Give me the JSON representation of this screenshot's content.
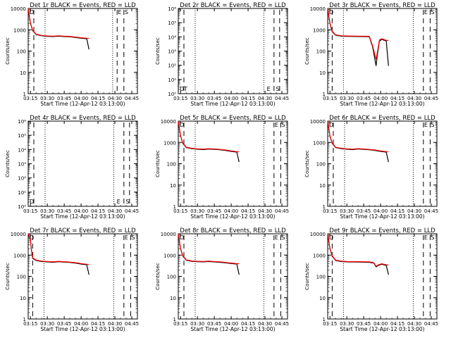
{
  "figure": {
    "xlabel": "Start Time (12-Apr-12 03:13:00)",
    "ylabel": "Counts/sec",
    "x_ticks": [
      "03:15",
      "03:30",
      "03:45",
      "04:00",
      "04:15",
      "04:30",
      "04:45"
    ],
    "colors": {
      "events": "#000000",
      "lld": "#ff0000",
      "background": "#ffffff"
    }
  },
  "chart_data": [
    {
      "type": "line",
      "title": "Det 1r BLACK = Events, RED = LLD",
      "yscale": "log",
      "ylim": [
        1,
        10000
      ],
      "y_ticks": [
        "1",
        "10",
        "100",
        "1000",
        "10000"
      ],
      "xlim": [
        "03:13",
        "04:50"
      ],
      "vlines_dashed": [
        "03:18",
        "04:32",
        "04:38"
      ],
      "vlines_dotted": [
        "03:28",
        "04:28"
      ],
      "markers": [
        {
          "label": "D",
          "x": "03:13"
        },
        {
          "label": "S",
          "x": "04:38"
        },
        {
          "label": "E",
          "x": "04:32"
        }
      ],
      "series": [
        {
          "name": "Events",
          "x": [
            "03:13",
            "03:15",
            "03:17",
            "03:20",
            "03:25",
            "03:30",
            "03:35",
            "03:40",
            "03:45",
            "03:50",
            "03:55",
            "04:00",
            "04:05",
            "04:07"
          ],
          "y": [
            10000,
            2000,
            900,
            600,
            520,
            490,
            480,
            500,
            480,
            470,
            430,
            400,
            380,
            120
          ]
        },
        {
          "name": "LLD",
          "x": [
            "03:13",
            "03:15",
            "03:17",
            "03:20",
            "03:25",
            "03:30",
            "03:35",
            "03:40",
            "03:45",
            "03:50",
            "03:55",
            "04:00",
            "04:05",
            "04:07"
          ],
          "y": [
            10000,
            2100,
            950,
            620,
            540,
            510,
            500,
            520,
            500,
            490,
            450,
            420,
            400,
            390
          ]
        }
      ]
    },
    {
      "type": "line",
      "title": "Det 2r BLACK = Events, RED = LLD",
      "yscale": "log",
      "ylim": [
        1,
        1000000
      ],
      "y_ticks": [
        "10⁰",
        "10¹",
        "10²",
        "10³",
        "10⁴",
        "10⁵",
        "10⁶"
      ],
      "xlim": [
        "03:13",
        "04:50"
      ],
      "vlines_dashed": [
        "03:18",
        "04:38",
        "04:43"
      ],
      "vlines_dotted": [
        "03:28",
        "04:29"
      ],
      "markers": [
        {
          "label": "DT",
          "x": "03:13"
        },
        {
          "label": "E",
          "x": "04:31"
        },
        {
          "label": "S",
          "x": "04:39"
        }
      ],
      "series": []
    },
    {
      "type": "line",
      "title": "Det 3r BLACK = Events, RED = LLD",
      "yscale": "log",
      "ylim": [
        1,
        10000
      ],
      "y_ticks": [
        "1",
        "10",
        "100",
        "1000",
        "10000"
      ],
      "xlim": [
        "03:13",
        "04:50"
      ],
      "vlines_dashed": [
        "03:17",
        "04:38",
        "04:44"
      ],
      "vlines_dotted": [
        "03:27",
        "04:29"
      ],
      "markers": [
        {
          "label": "D",
          "x": "03:13"
        },
        {
          "label": "E",
          "x": "04:38"
        },
        {
          "label": "S",
          "x": "04:44"
        }
      ],
      "series": [
        {
          "name": "Events",
          "x": [
            "03:13",
            "03:15",
            "03:17",
            "03:20",
            "03:25",
            "03:30",
            "03:40",
            "03:50",
            "03:53",
            "03:56",
            "03:57",
            "03:59",
            "04:01",
            "04:05",
            "04:07"
          ],
          "y": [
            10000,
            2000,
            800,
            560,
            500,
            490,
            480,
            470,
            150,
            20,
            60,
            300,
            350,
            300,
            20
          ]
        },
        {
          "name": "LLD",
          "x": [
            "03:13",
            "03:15",
            "03:17",
            "03:20",
            "03:25",
            "03:30",
            "03:40",
            "03:50",
            "03:53",
            "03:56",
            "03:57",
            "03:59",
            "04:01",
            "04:05",
            "04:07"
          ],
          "y": [
            10000,
            2100,
            850,
            580,
            520,
            510,
            500,
            490,
            170,
            40,
            80,
            330,
            380,
            320,
            310
          ]
        }
      ]
    },
    {
      "type": "line",
      "title": "Det 4r BLACK = Events, RED = LLD",
      "yscale": "log",
      "ylim": [
        1,
        1000000
      ],
      "y_ticks": [
        "10⁰",
        "10¹",
        "10²",
        "10³",
        "10⁴",
        "10⁵",
        "10⁶"
      ],
      "xlim": [
        "03:13",
        "04:50"
      ],
      "vlines_dashed": [
        "03:18",
        "04:38",
        "04:43"
      ],
      "vlines_dotted": [
        "03:28",
        "04:29"
      ],
      "markers": [
        {
          "label": "D",
          "x": "03:13"
        },
        {
          "label": "E",
          "x": "04:31"
        },
        {
          "label": "S",
          "x": "04:39"
        }
      ],
      "series": []
    },
    {
      "type": "line",
      "title": "Det 5r BLACK = Events, RED = LLD",
      "yscale": "log",
      "ylim": [
        1,
        10000
      ],
      "y_ticks": [
        "1",
        "10",
        "100",
        "1000",
        "10000"
      ],
      "xlim": [
        "03:13",
        "04:50"
      ],
      "vlines_dashed": [
        "03:18",
        "04:38",
        "04:44"
      ],
      "vlines_dotted": [
        "03:28",
        "04:29"
      ],
      "markers": [
        {
          "label": "D",
          "x": "03:13"
        },
        {
          "label": "E",
          "x": "04:38"
        },
        {
          "label": "S",
          "x": "04:44"
        }
      ],
      "series": [
        {
          "name": "Events",
          "x": [
            "03:13",
            "03:15",
            "03:17",
            "03:20",
            "03:25",
            "03:30",
            "03:35",
            "03:40",
            "03:45",
            "03:50",
            "03:55",
            "04:00",
            "04:05",
            "04:07"
          ],
          "y": [
            10000,
            2000,
            900,
            580,
            510,
            480,
            460,
            490,
            470,
            450,
            420,
            380,
            350,
            120
          ]
        },
        {
          "name": "LLD",
          "x": [
            "03:13",
            "03:15",
            "03:17",
            "03:20",
            "03:25",
            "03:30",
            "03:35",
            "03:40",
            "03:45",
            "03:50",
            "03:55",
            "04:00",
            "04:05",
            "04:07"
          ],
          "y": [
            10000,
            2100,
            950,
            600,
            530,
            500,
            480,
            510,
            490,
            470,
            440,
            400,
            370,
            360
          ]
        }
      ]
    },
    {
      "type": "line",
      "title": "Det 6r BLACK = Events, RED = LLD",
      "yscale": "log",
      "ylim": [
        1,
        10000
      ],
      "y_ticks": [
        "1",
        "10",
        "100",
        "1000",
        "10000"
      ],
      "xlim": [
        "03:13",
        "04:50"
      ],
      "vlines_dashed": [
        "03:18",
        "04:38",
        "04:44"
      ],
      "vlines_dotted": [
        "03:28",
        "04:29"
      ],
      "markers": [
        {
          "label": "D",
          "x": "03:13"
        },
        {
          "label": "E",
          "x": "04:38"
        },
        {
          "label": "S",
          "x": "04:44"
        }
      ],
      "series": [
        {
          "name": "Events",
          "x": [
            "03:13",
            "03:15",
            "03:17",
            "03:20",
            "03:25",
            "03:30",
            "03:35",
            "03:40",
            "03:45",
            "03:50",
            "03:55",
            "04:00",
            "04:05",
            "04:07"
          ],
          "y": [
            10000,
            2000,
            900,
            580,
            510,
            480,
            460,
            490,
            470,
            450,
            420,
            380,
            350,
            120
          ]
        },
        {
          "name": "LLD",
          "x": [
            "03:13",
            "03:15",
            "03:17",
            "03:20",
            "03:25",
            "03:30",
            "03:35",
            "03:40",
            "03:45",
            "03:50",
            "03:55",
            "04:00",
            "04:05",
            "04:07"
          ],
          "y": [
            10000,
            2100,
            950,
            600,
            530,
            500,
            480,
            510,
            490,
            470,
            440,
            400,
            370,
            360
          ]
        }
      ]
    },
    {
      "type": "line",
      "title": "Det 7r BLACK = Events, RED = LLD",
      "yscale": "log",
      "ylim": [
        1,
        10000
      ],
      "y_ticks": [
        "1",
        "10",
        "100",
        "1000",
        "10000"
      ],
      "xlim": [
        "03:13",
        "04:50"
      ],
      "vlines_dashed": [
        "03:17",
        "04:38",
        "04:44"
      ],
      "vlines_dotted": [
        "03:27",
        "04:29"
      ],
      "markers": [
        {
          "label": "D",
          "x": "03:13"
        },
        {
          "label": "E",
          "x": "04:38"
        },
        {
          "label": "S",
          "x": "04:44"
        }
      ],
      "series": [
        {
          "name": "Events",
          "x": [
            "03:13",
            "03:15",
            "03:16",
            "03:17",
            "03:20",
            "03:25",
            "03:30",
            "03:35",
            "03:40",
            "03:45",
            "03:50",
            "03:55",
            "04:00",
            "04:05",
            "04:07"
          ],
          "y": [
            10000,
            5000,
            1500,
            700,
            560,
            500,
            480,
            460,
            490,
            470,
            450,
            420,
            380,
            350,
            120
          ]
        },
        {
          "name": "LLD",
          "x": [
            "03:13",
            "03:15",
            "03:16",
            "03:17",
            "03:20",
            "03:25",
            "03:30",
            "03:35",
            "03:40",
            "03:45",
            "03:50",
            "03:55",
            "04:00",
            "04:05",
            "04:07"
          ],
          "y": [
            10000,
            5200,
            1600,
            750,
            580,
            520,
            500,
            480,
            510,
            490,
            470,
            440,
            400,
            370,
            360
          ]
        }
      ]
    },
    {
      "type": "line",
      "title": "Det 8r BLACK = Events, RED = LLD",
      "yscale": "log",
      "ylim": [
        1,
        10000
      ],
      "y_ticks": [
        "1",
        "10",
        "100",
        "1000",
        "10000"
      ],
      "xlim": [
        "03:13",
        "04:50"
      ],
      "vlines_dashed": [
        "03:18",
        "04:38",
        "04:44"
      ],
      "vlines_dotted": [
        "03:28",
        "04:29"
      ],
      "markers": [
        {
          "label": "D",
          "x": "03:13"
        },
        {
          "label": "E",
          "x": "04:38"
        },
        {
          "label": "S",
          "x": "04:44"
        }
      ],
      "series": [
        {
          "name": "Events",
          "x": [
            "03:13",
            "03:15",
            "03:17",
            "03:20",
            "03:25",
            "03:30",
            "03:35",
            "03:40",
            "03:45",
            "03:50",
            "03:55",
            "04:00",
            "04:05",
            "04:07"
          ],
          "y": [
            10000,
            2000,
            900,
            580,
            510,
            490,
            480,
            500,
            480,
            460,
            430,
            400,
            380,
            120
          ]
        },
        {
          "name": "LLD",
          "x": [
            "03:13",
            "03:15",
            "03:17",
            "03:20",
            "03:25",
            "03:30",
            "03:35",
            "03:40",
            "03:45",
            "03:50",
            "03:55",
            "04:00",
            "04:05",
            "04:07"
          ],
          "y": [
            10000,
            2100,
            950,
            600,
            530,
            510,
            500,
            520,
            500,
            480,
            450,
            420,
            400,
            390
          ]
        }
      ]
    },
    {
      "type": "line",
      "title": "Det 9r BLACK = Events, RED = LLD",
      "yscale": "log",
      "ylim": [
        1,
        10000
      ],
      "y_ticks": [
        "1",
        "10",
        "100",
        "1000",
        "10000"
      ],
      "xlim": [
        "03:13",
        "04:50"
      ],
      "vlines_dashed": [
        "03:17",
        "04:38",
        "04:44"
      ],
      "vlines_dotted": [
        "03:27",
        "04:29"
      ],
      "markers": [
        {
          "label": "D",
          "x": "03:13"
        },
        {
          "label": "E",
          "x": "04:38"
        },
        {
          "label": "S",
          "x": "04:44"
        }
      ],
      "series": [
        {
          "name": "Events",
          "x": [
            "03:13",
            "03:15",
            "03:17",
            "03:20",
            "03:25",
            "03:30",
            "03:40",
            "03:50",
            "03:54",
            "03:56",
            "03:58",
            "04:01",
            "04:05",
            "04:07"
          ],
          "y": [
            10000,
            2000,
            900,
            560,
            500,
            480,
            470,
            460,
            420,
            280,
            330,
            370,
            330,
            120
          ]
        },
        {
          "name": "LLD",
          "x": [
            "03:13",
            "03:15",
            "03:17",
            "03:20",
            "03:25",
            "03:30",
            "03:40",
            "03:50",
            "03:54",
            "03:56",
            "03:58",
            "04:01",
            "04:05",
            "04:07"
          ],
          "y": [
            10000,
            2100,
            950,
            580,
            520,
            500,
            490,
            480,
            440,
            300,
            350,
            390,
            350,
            340
          ]
        }
      ]
    }
  ]
}
